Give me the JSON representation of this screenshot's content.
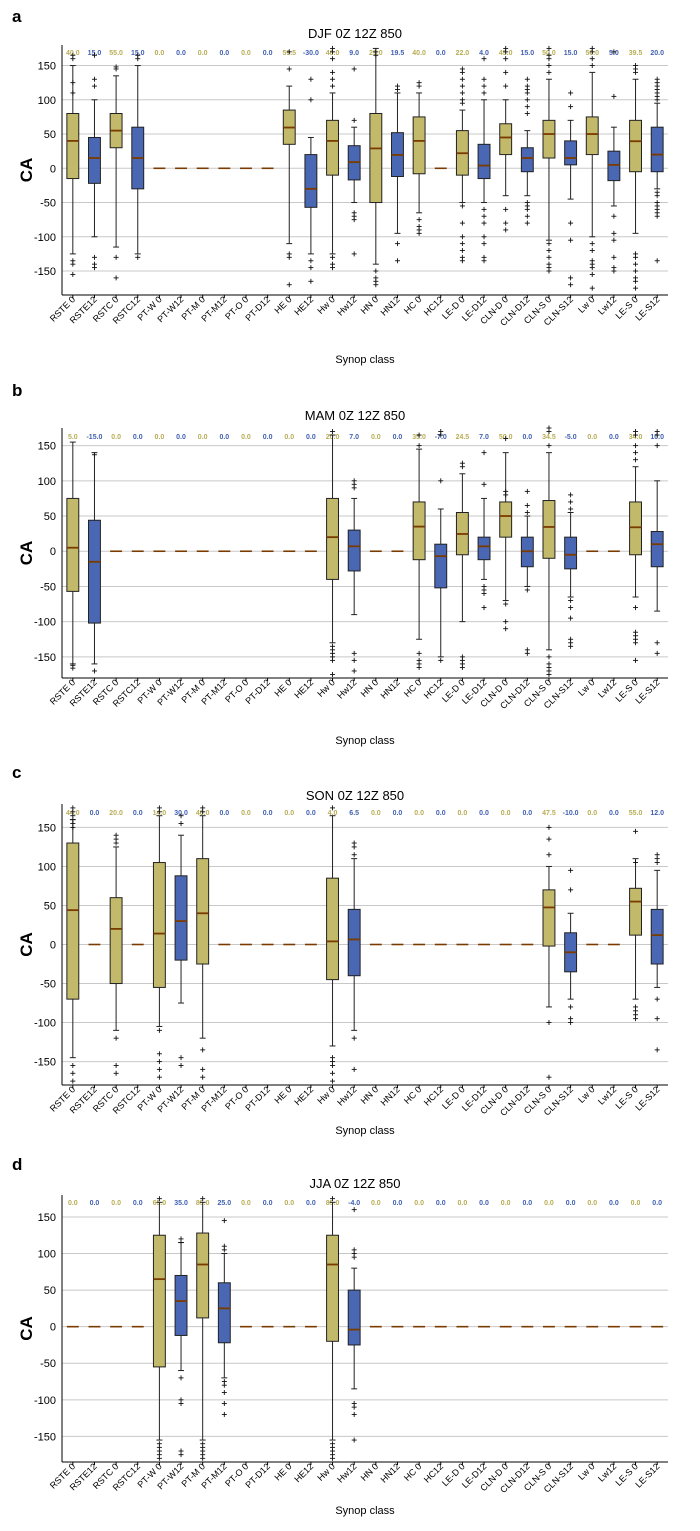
{
  "classes": [
    "RSTE 0",
    "RSTE12",
    "RSTC 0",
    "RSTC12",
    "PT-W 0",
    "PT-W12",
    "PT-M 0",
    "PT-M12",
    "PT-O 0",
    "PT-D12",
    "HE 0",
    "HE12",
    "Hw 0",
    "Hw12",
    "HN 0",
    "HN12",
    "HC 0",
    "HC12",
    "LE-D 0",
    "LE-D12",
    "CLN-D 0",
    "CLN-D12",
    "CLN-S 0",
    "CLN-S12",
    "Lw 0",
    "Lw12",
    "LE-S 0",
    "LE-S12"
  ],
  "colors": {
    "khaki": "#c2b96a",
    "blue": "#4a67b3",
    "median": "#7a3b00",
    "whisker": "#222222",
    "grid": "#c8c8c8",
    "label_khaki": "#b8ad55",
    "label_blue": "#3f5fb0"
  },
  "chart_data": [
    {
      "letter": "a",
      "season": "DJF",
      "run": "0Z 12Z 850",
      "type": "box",
      "xlabel": "Synop class",
      "ylabel": "CA",
      "ylim": [
        -185,
        180
      ],
      "yticks": [
        150,
        100,
        50,
        0,
        -50,
        -100,
        -150
      ],
      "medians_text": [
        "40.0",
        "15.0",
        "55.0",
        "15.0",
        "0.0",
        "0.0",
        "0.0",
        "0.0",
        "0.0",
        "0.0",
        "59.5",
        "-30.0",
        "40.0",
        "9.0",
        "29.0",
        "19.5",
        "40.0",
        "0.0",
        "22.0",
        "4.0",
        "45.0",
        "15.0",
        "50.0",
        "15.0",
        "50.0",
        "5.0",
        "39.5",
        "20.0"
      ],
      "boxes": [
        {
          "q1": -15,
          "med": 40,
          "q3": 80,
          "lo": -125,
          "hi": 150,
          "out": [
            165,
            160,
            125,
            110,
            -135,
            -140,
            -155
          ]
        },
        {
          "q1": -22,
          "med": 15,
          "q3": 45,
          "lo": -100,
          "hi": 100,
          "out": [
            165,
            130,
            120,
            -130,
            -140,
            -145
          ]
        },
        {
          "q1": 30,
          "med": 55,
          "q3": 80,
          "lo": -115,
          "hi": 135,
          "out": [
            148,
            145,
            -130,
            -160
          ]
        },
        {
          "q1": -30,
          "med": 15,
          "q3": 60,
          "lo": -125,
          "hi": 150,
          "out": [
            165,
            160,
            -130
          ]
        },
        null,
        null,
        null,
        null,
        null,
        null,
        {
          "q1": 35,
          "med": 59.5,
          "q3": 85,
          "lo": -110,
          "hi": 120,
          "out": [
            170,
            145,
            -125,
            -130,
            -170
          ]
        },
        {
          "q1": -57,
          "med": -30,
          "q3": 20,
          "lo": -125,
          "hi": 45,
          "out": [
            130,
            100,
            -135,
            -145,
            -165
          ]
        },
        {
          "q1": -10,
          "med": 40,
          "q3": 70,
          "lo": -125,
          "hi": 110,
          "out": [
            175,
            170,
            160,
            140,
            130,
            120,
            -130,
            -140,
            -145
          ]
        },
        {
          "q1": -17,
          "med": 9,
          "q3": 33,
          "lo": -50,
          "hi": 60,
          "out": [
            145,
            70,
            -65,
            -70,
            -75,
            -125
          ]
        },
        {
          "q1": -50,
          "med": 29,
          "q3": 80,
          "lo": -140,
          "hi": 175,
          "out": [
            170,
            165,
            -150,
            -160,
            -165,
            -170
          ]
        },
        {
          "q1": -12,
          "med": 19.5,
          "q3": 52,
          "lo": -95,
          "hi": 110,
          "out": [
            120,
            115,
            -110,
            -135
          ]
        },
        {
          "q1": -8,
          "med": 40,
          "q3": 75,
          "lo": -65,
          "hi": 110,
          "out": [
            125,
            120,
            -75,
            -85,
            -90,
            -95
          ]
        },
        null,
        {
          "q1": -10,
          "med": 22,
          "q3": 55,
          "lo": -50,
          "hi": 85,
          "out": [
            145,
            140,
            130,
            120,
            110,
            100,
            95,
            -55,
            -80,
            -100,
            -110,
            -120,
            -130,
            -135
          ]
        },
        {
          "q1": -15,
          "med": 4,
          "q3": 35,
          "lo": -50,
          "hi": 100,
          "out": [
            160,
            130,
            120,
            110,
            -60,
            -70,
            -80,
            -100,
            -110,
            -130,
            -135
          ]
        },
        {
          "q1": 20,
          "med": 45,
          "q3": 65,
          "lo": -40,
          "hi": 100,
          "out": [
            175,
            170,
            160,
            140,
            120,
            -60,
            -80,
            -90
          ]
        },
        {
          "q1": -5,
          "med": 15,
          "q3": 30,
          "lo": -40,
          "hi": 55,
          "out": [
            130,
            120,
            115,
            110,
            100,
            90,
            80,
            -50,
            -55,
            -60,
            -70,
            -80
          ]
        },
        {
          "q1": 15,
          "med": 50,
          "q3": 70,
          "lo": -105,
          "hi": 130,
          "out": [
            175,
            165,
            160,
            150,
            140,
            -110,
            -120,
            -130,
            -140,
            -145,
            -150
          ]
        },
        {
          "q1": 5,
          "med": 15,
          "q3": 40,
          "lo": -45,
          "hi": 70,
          "out": [
            110,
            90,
            -80,
            -105,
            -160,
            -170
          ]
        },
        {
          "q1": 20,
          "med": 50,
          "q3": 75,
          "lo": -100,
          "hi": 140,
          "out": [
            175,
            170,
            160,
            150,
            -110,
            -120,
            -135,
            -140,
            -145,
            -155,
            -175
          ]
        },
        {
          "q1": -18,
          "med": 5,
          "q3": 25,
          "lo": -55,
          "hi": 60,
          "out": [
            170,
            105,
            -70,
            -95,
            -105,
            -130,
            -145,
            -150
          ]
        },
        {
          "q1": -5,
          "med": 39.5,
          "q3": 70,
          "lo": -95,
          "hi": 130,
          "out": [
            150,
            145,
            140,
            -125,
            -130,
            -140,
            -150,
            -160,
            -165,
            -175
          ]
        },
        {
          "q1": -5,
          "med": 20,
          "q3": 60,
          "lo": -30,
          "hi": 95,
          "out": [
            130,
            125,
            120,
            115,
            110,
            105,
            100,
            -35,
            -40,
            -50,
            -55,
            -60,
            -65,
            -70,
            -135
          ]
        }
      ]
    },
    {
      "letter": "b",
      "season": "MAM",
      "run": "0Z 12Z 850",
      "type": "box",
      "xlabel": "Synop class",
      "ylabel": "CA",
      "ylim": [
        -180,
        175
      ],
      "yticks": [
        150,
        100,
        50,
        0,
        -50,
        -100,
        -150
      ],
      "medians_text": [
        "5.0",
        "-15.0",
        "0.0",
        "0.0",
        "0.0",
        "0.0",
        "0.0",
        "0.0",
        "0.0",
        "0.0",
        "0.0",
        "0.0",
        "20.0",
        "7.0",
        "0.0",
        "0.0",
        "35.0",
        "-7.0",
        "24.5",
        "7.0",
        "50.0",
        "0.0",
        "34.5",
        "-5.0",
        "0.0",
        "0.0",
        "34.0",
        "10.0"
      ],
      "boxes": [
        {
          "q1": -57,
          "med": 5,
          "q3": 75,
          "lo": -160,
          "hi": 155,
          "out": [
            -162,
            -166
          ]
        },
        {
          "q1": -102,
          "med": -15,
          "q3": 44,
          "lo": -160,
          "hi": 140,
          "out": [
            137,
            -170
          ]
        },
        null,
        null,
        null,
        null,
        null,
        null,
        null,
        null,
        null,
        null,
        {
          "q1": -40,
          "med": 20,
          "q3": 75,
          "lo": -130,
          "hi": 165,
          "out": [
            170,
            -135,
            -140,
            -145,
            -150,
            -155,
            -175
          ]
        },
        {
          "q1": -28,
          "med": 7,
          "q3": 30,
          "lo": -90,
          "hi": 75,
          "out": [
            100,
            95,
            90,
            -145,
            -155,
            -170
          ]
        },
        null,
        null,
        {
          "q1": -12,
          "med": 35,
          "q3": 70,
          "lo": -125,
          "hi": 145,
          "out": [
            165,
            150,
            -145,
            -155,
            -160,
            -165
          ]
        },
        {
          "q1": -52,
          "med": -7,
          "q3": 10,
          "lo": -150,
          "hi": 60,
          "out": [
            170,
            165,
            100,
            -155
          ]
        },
        {
          "q1": -5,
          "med": 24.5,
          "q3": 55,
          "lo": -100,
          "hi": 110,
          "out": [
            125,
            120,
            -150,
            -155,
            -160,
            -165
          ]
        },
        {
          "q1": -12,
          "med": 7,
          "q3": 20,
          "lo": -40,
          "hi": 75,
          "out": [
            140,
            95,
            -50,
            -55,
            -60,
            -80
          ]
        },
        {
          "q1": 20,
          "med": 50,
          "q3": 70,
          "lo": -70,
          "hi": 140,
          "out": [
            160,
            85,
            80,
            -75,
            -100,
            -110
          ]
        },
        {
          "q1": -22,
          "med": 0,
          "q3": 20,
          "lo": -50,
          "hi": 50,
          "out": [
            85,
            65,
            55,
            -55,
            -140,
            -145
          ]
        },
        {
          "q1": -10,
          "med": 34.5,
          "q3": 72,
          "lo": -140,
          "hi": 140,
          "out": [
            175,
            170,
            150,
            -150,
            -160,
            -165,
            -170,
            -175
          ]
        },
        {
          "q1": -25,
          "med": -5,
          "q3": 20,
          "lo": -65,
          "hi": 55,
          "out": [
            80,
            70,
            60,
            -70,
            -80,
            -95,
            -125,
            -130,
            -135
          ]
        },
        null,
        null,
        {
          "q1": -5,
          "med": 34,
          "q3": 70,
          "lo": -65,
          "hi": 120,
          "out": [
            170,
            165,
            150,
            140,
            130,
            -80,
            -115,
            -120,
            -125,
            -130,
            -155
          ]
        },
        {
          "q1": -22,
          "med": 10,
          "q3": 28,
          "lo": -85,
          "hi": 100,
          "out": [
            170,
            165,
            150,
            -130,
            -145
          ]
        }
      ]
    },
    {
      "letter": "c",
      "season": "SON",
      "run": "0Z 12Z 850",
      "type": "box",
      "xlabel": "Synop class",
      "ylabel": "CA",
      "ylim": [
        -180,
        180
      ],
      "yticks": [
        150,
        100,
        50,
        0,
        -50,
        -100,
        -150
      ],
      "medians_text": [
        "44.0",
        "0.0",
        "20.0",
        "0.0",
        "14.0",
        "30.0",
        "40.0",
        "0.0",
        "0.0",
        "0.0",
        "0.0",
        "0.0",
        "4.0",
        "6.5",
        "0.0",
        "0.0",
        "0.0",
        "0.0",
        "0.0",
        "0.0",
        "0.0",
        "0.0",
        "47.5",
        "-10.0",
        "0.0",
        "0.0",
        "55.0",
        "12.0"
      ],
      "boxes": [
        {
          "q1": -70,
          "med": 44,
          "q3": 130,
          "lo": -145,
          "hi": 160,
          "out": [
            175,
            170,
            165,
            160,
            155,
            150,
            -155,
            -165,
            -175
          ]
        },
        null,
        {
          "q1": -50,
          "med": 20,
          "q3": 60,
          "lo": -110,
          "hi": 125,
          "out": [
            140,
            135,
            130,
            -120,
            -155,
            -165
          ]
        },
        null,
        {
          "q1": -55,
          "med": 14,
          "q3": 105,
          "lo": -105,
          "hi": 165,
          "out": [
            175,
            170,
            -110,
            -140,
            -150,
            -160,
            -170
          ]
        },
        {
          "q1": -20,
          "med": 30,
          "q3": 88,
          "lo": -75,
          "hi": 140,
          "out": [
            165,
            155,
            -145,
            -155
          ]
        },
        {
          "q1": -25,
          "med": 40,
          "q3": 110,
          "lo": -120,
          "hi": 165,
          "out": [
            175,
            170,
            -135,
            -160,
            -170
          ]
        },
        null,
        null,
        null,
        null,
        null,
        {
          "q1": -45,
          "med": 4,
          "q3": 85,
          "lo": -130,
          "hi": 165,
          "out": [
            175,
            -145,
            -150,
            -155,
            -165,
            -175
          ]
        },
        {
          "q1": -40,
          "med": 6.5,
          "q3": 45,
          "lo": -110,
          "hi": 110,
          "out": [
            130,
            125,
            115,
            -120,
            -160
          ]
        },
        null,
        null,
        null,
        null,
        null,
        null,
        null,
        null,
        {
          "q1": -2,
          "med": 47.5,
          "q3": 70,
          "lo": -80,
          "hi": 100,
          "out": [
            150,
            135,
            115,
            -100,
            -170
          ]
        },
        {
          "q1": -35,
          "med": -10,
          "q3": 15,
          "lo": -70,
          "hi": 40,
          "out": [
            95,
            70,
            -80,
            -95,
            -100
          ]
        },
        null,
        null,
        {
          "q1": 12,
          "med": 55,
          "q3": 72,
          "lo": -70,
          "hi": 110,
          "out": [
            145,
            105,
            -80,
            -85,
            -90,
            -95
          ]
        },
        {
          "q1": -25,
          "med": 12,
          "q3": 45,
          "lo": -55,
          "hi": 95,
          "out": [
            115,
            110,
            105,
            -70,
            -95,
            -135
          ]
        }
      ]
    },
    {
      "letter": "d",
      "season": "JJA",
      "run": "0Z 12Z 850",
      "type": "box",
      "xlabel": "Synop class",
      "ylabel": "CA",
      "ylim": [
        -185,
        180
      ],
      "yticks": [
        150,
        100,
        50,
        0,
        -50,
        -100,
        -150
      ],
      "medians_text": [
        "0.0",
        "0.0",
        "0.0",
        "0.0",
        "65.0",
        "35.0",
        "85.0",
        "25.0",
        "0.0",
        "0.0",
        "0.0",
        "0.0",
        "85.0",
        "-4.0",
        "0.0",
        "0.0",
        "0.0",
        "0.0",
        "0.0",
        "0.0",
        "0.0",
        "0.0",
        "0.0",
        "0.0",
        "0.0",
        "0.0",
        "0.0",
        "0.0"
      ],
      "boxes": [
        null,
        null,
        null,
        null,
        {
          "q1": -55,
          "med": 65,
          "q3": 125,
          "lo": -155,
          "hi": 170,
          "out": [
            175,
            -160,
            -165,
            -170,
            -175,
            -180
          ]
        },
        {
          "q1": -12,
          "med": 35,
          "q3": 70,
          "lo": -60,
          "hi": 115,
          "out": [
            120,
            115,
            -70,
            -100,
            -105,
            -170,
            -175
          ]
        },
        {
          "q1": 12,
          "med": 85,
          "q3": 128,
          "lo": -155,
          "hi": 170,
          "out": [
            175,
            -160,
            -165,
            -170,
            -175,
            -180
          ]
        },
        {
          "q1": -22,
          "med": 25,
          "q3": 60,
          "lo": -70,
          "hi": 100,
          "out": [
            145,
            110,
            105,
            -75,
            -80,
            -90,
            -105,
            -120
          ]
        },
        null,
        null,
        null,
        null,
        {
          "q1": -20,
          "med": 85,
          "q3": 125,
          "lo": -155,
          "hi": 170,
          "out": [
            175,
            -160,
            -165,
            -170,
            -175,
            -180
          ]
        },
        {
          "q1": -25,
          "med": -4,
          "q3": 50,
          "lo": -85,
          "hi": 80,
          "out": [
            160,
            105,
            100,
            95,
            -105,
            -110,
            -120,
            -155
          ]
        },
        null,
        null,
        null,
        null,
        null,
        null,
        null,
        null,
        null,
        null,
        null,
        null,
        null,
        null
      ]
    }
  ]
}
